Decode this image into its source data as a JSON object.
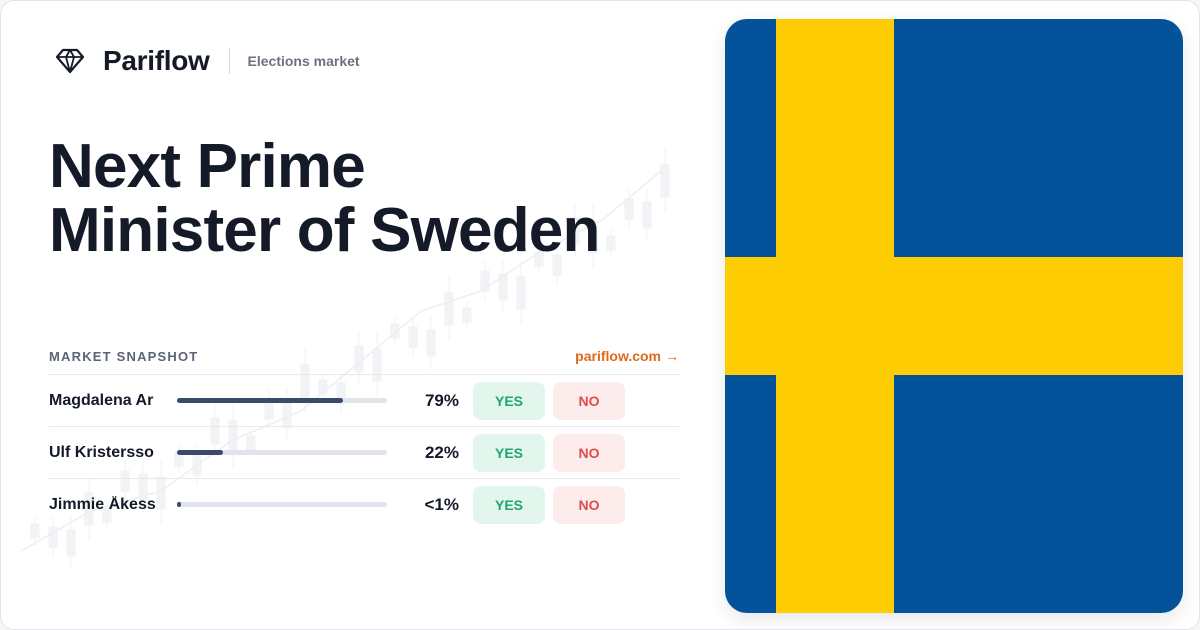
{
  "brand": {
    "name": "Pariflow",
    "section": "Elections market",
    "logo_icon": "diamond-icon"
  },
  "market": {
    "title_line1": "Next Prime",
    "title_line2": "Minister of Sweden"
  },
  "snapshot": {
    "label": "MARKET SNAPSHOT",
    "link_text": "pariflow.com",
    "link_arrow": "→",
    "rows": [
      {
        "name": "Magdalena Ar",
        "pct": "79%",
        "level": 0.79,
        "yes": "YES",
        "no": "NO"
      },
      {
        "name": "Ulf Kristersso",
        "pct": "22%",
        "level": 0.22,
        "yes": "YES",
        "no": "NO"
      },
      {
        "name": "Jimmie Åkess",
        "pct": "<1%",
        "level": 0.01,
        "yes": "YES",
        "no": "NO"
      }
    ]
  },
  "flag": {
    "country": "Sweden",
    "blue": "#04539a",
    "yellow": "#fecc02"
  },
  "colors": {
    "accent": "#e06a1a",
    "yes": "#1fa672",
    "no": "#e14b4b",
    "text": "#141a28"
  }
}
